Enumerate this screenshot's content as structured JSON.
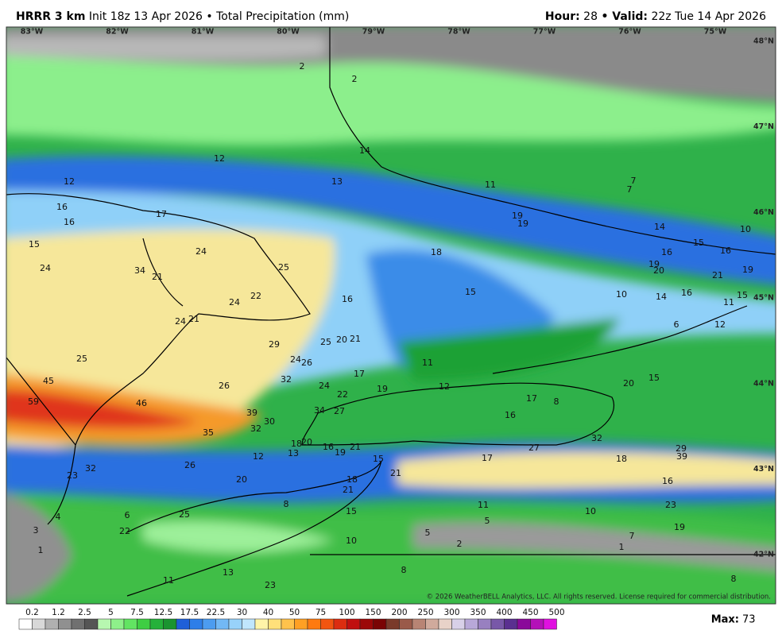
{
  "header": {
    "model": "HRRR 3 km",
    "init": "Init 18z 13 Apr 2026 • Total Precipitation (mm)",
    "hour_label": "Hour:",
    "hour": "28",
    "valid_label": "• Valid:",
    "valid": "22z Tue 14 Apr 2026"
  },
  "longitudes": [
    "83°W",
    "82°W",
    "81°W",
    "80°W",
    "79°W",
    "78°W",
    "77°W",
    "76°W",
    "75°W"
  ],
  "latitudes": [
    "48°N",
    "47°N",
    "46°N",
    "45°N",
    "44°N",
    "43°N",
    "42°N"
  ],
  "map_values": [
    2,
    2,
    14,
    12,
    12,
    13,
    11,
    7,
    7,
    16,
    16,
    17,
    19,
    19,
    14,
    10,
    15,
    24,
    18,
    15,
    16,
    16,
    24,
    34,
    21,
    25,
    19,
    20,
    21,
    19,
    22,
    15,
    10,
    14,
    16,
    15,
    11,
    24,
    16,
    24,
    21,
    6,
    12,
    25,
    20,
    21,
    29,
    25,
    24,
    26,
    11,
    17,
    45,
    32,
    26,
    24,
    12,
    19,
    20,
    15,
    22,
    59,
    46,
    17,
    8,
    39,
    34,
    27,
    30,
    16,
    32,
    35,
    18,
    20,
    16,
    19,
    21,
    32,
    27,
    29,
    39,
    12,
    13,
    15,
    17,
    18,
    26,
    32,
    23,
    21,
    20,
    18,
    16,
    21,
    8,
    11,
    23,
    10,
    6,
    4,
    25,
    15,
    5,
    19,
    3,
    22,
    5,
    10,
    7,
    2,
    1,
    1,
    8,
    13,
    11,
    23,
    8
  ],
  "colorbar_labels": [
    0.2,
    1.2,
    2.5,
    5,
    7.5,
    12.5,
    17.5,
    22.5,
    30,
    40,
    50,
    75,
    100,
    150,
    200,
    250,
    300,
    350,
    400,
    450,
    500
  ],
  "copyright": "© 2026 WeatherBELL Analytics, LLC. All rights reserved. License required for commercial distribution.",
  "max_label": "Max:",
  "max_value": "73"
}
